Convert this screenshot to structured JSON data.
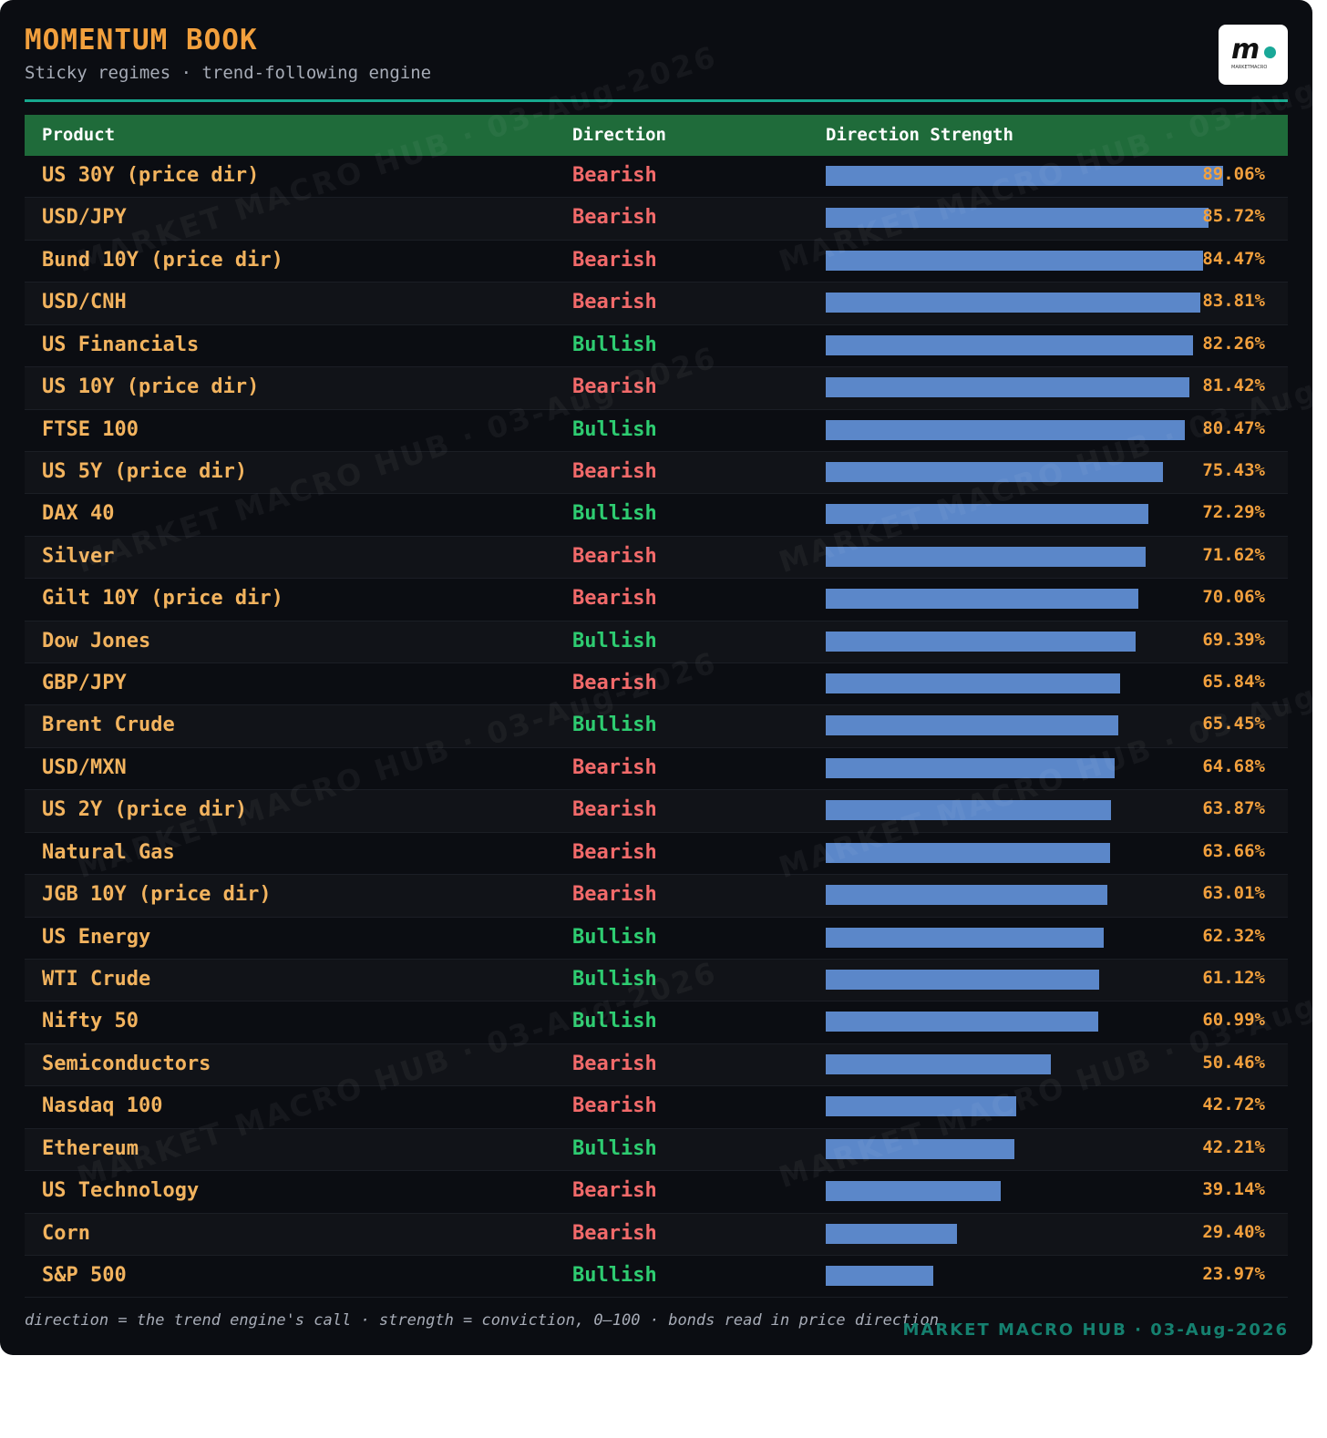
{
  "title": "MOMENTUM BOOK",
  "subtitle": "Sticky regimes · trend-following engine",
  "logo": {
    "mark": "m",
    "text": "MARKETMACRO"
  },
  "colors": {
    "bullish": "#2ecc71",
    "bearish": "#f26a6a",
    "bar": "#5b87c9",
    "header": "#1f6b3a",
    "accent": "#f2a03d"
  },
  "watermark": "MARKET MACRO HUB · 03-Aug-2026",
  "chart_data": {
    "type": "bar",
    "columns": [
      "Product",
      "Direction",
      "Direction Strength"
    ],
    "xlim": [
      0,
      100
    ],
    "rows": [
      {
        "product": "US 30Y (price dir)",
        "direction": "Bearish",
        "strength": 89.06,
        "label": "89.06%"
      },
      {
        "product": "USD/JPY",
        "direction": "Bearish",
        "strength": 85.72,
        "label": "85.72%"
      },
      {
        "product": "Bund 10Y (price dir)",
        "direction": "Bearish",
        "strength": 84.47,
        "label": "84.47%"
      },
      {
        "product": "USD/CNH",
        "direction": "Bearish",
        "strength": 83.81,
        "label": "83.81%"
      },
      {
        "product": "US Financials",
        "direction": "Bullish",
        "strength": 82.26,
        "label": "82.26%"
      },
      {
        "product": "US 10Y (price dir)",
        "direction": "Bearish",
        "strength": 81.42,
        "label": "81.42%"
      },
      {
        "product": "FTSE 100",
        "direction": "Bullish",
        "strength": 80.47,
        "label": "80.47%"
      },
      {
        "product": "US 5Y (price dir)",
        "direction": "Bearish",
        "strength": 75.43,
        "label": "75.43%"
      },
      {
        "product": "DAX 40",
        "direction": "Bullish",
        "strength": 72.29,
        "label": "72.29%"
      },
      {
        "product": "Silver",
        "direction": "Bearish",
        "strength": 71.62,
        "label": "71.62%"
      },
      {
        "product": "Gilt 10Y (price dir)",
        "direction": "Bearish",
        "strength": 70.06,
        "label": "70.06%"
      },
      {
        "product": "Dow Jones",
        "direction": "Bullish",
        "strength": 69.39,
        "label": "69.39%"
      },
      {
        "product": "GBP/JPY",
        "direction": "Bearish",
        "strength": 65.84,
        "label": "65.84%"
      },
      {
        "product": "Brent Crude",
        "direction": "Bullish",
        "strength": 65.45,
        "label": "65.45%"
      },
      {
        "product": "USD/MXN",
        "direction": "Bearish",
        "strength": 64.68,
        "label": "64.68%"
      },
      {
        "product": "US 2Y (price dir)",
        "direction": "Bearish",
        "strength": 63.87,
        "label": "63.87%"
      },
      {
        "product": "Natural Gas",
        "direction": "Bearish",
        "strength": 63.66,
        "label": "63.66%"
      },
      {
        "product": "JGB 10Y (price dir)",
        "direction": "Bearish",
        "strength": 63.01,
        "label": "63.01%"
      },
      {
        "product": "US Energy",
        "direction": "Bullish",
        "strength": 62.32,
        "label": "62.32%"
      },
      {
        "product": "WTI Crude",
        "direction": "Bullish",
        "strength": 61.12,
        "label": "61.12%"
      },
      {
        "product": "Nifty 50",
        "direction": "Bullish",
        "strength": 60.99,
        "label": "60.99%"
      },
      {
        "product": "Semiconductors",
        "direction": "Bearish",
        "strength": 50.46,
        "label": "50.46%"
      },
      {
        "product": "Nasdaq 100",
        "direction": "Bearish",
        "strength": 42.72,
        "label": "42.72%"
      },
      {
        "product": "Ethereum",
        "direction": "Bullish",
        "strength": 42.21,
        "label": "42.21%"
      },
      {
        "product": "US Technology",
        "direction": "Bearish",
        "strength": 39.14,
        "label": "39.14%"
      },
      {
        "product": "Corn",
        "direction": "Bearish",
        "strength": 29.4,
        "label": "29.40%"
      },
      {
        "product": "S&P 500",
        "direction": "Bullish",
        "strength": 23.97,
        "label": "23.97%"
      }
    ]
  },
  "footer": "direction = the trend engine's call · strength = conviction, 0–100 · bonds read in price direction",
  "brand": "MARKET MACRO HUB · 03-Aug-2026"
}
